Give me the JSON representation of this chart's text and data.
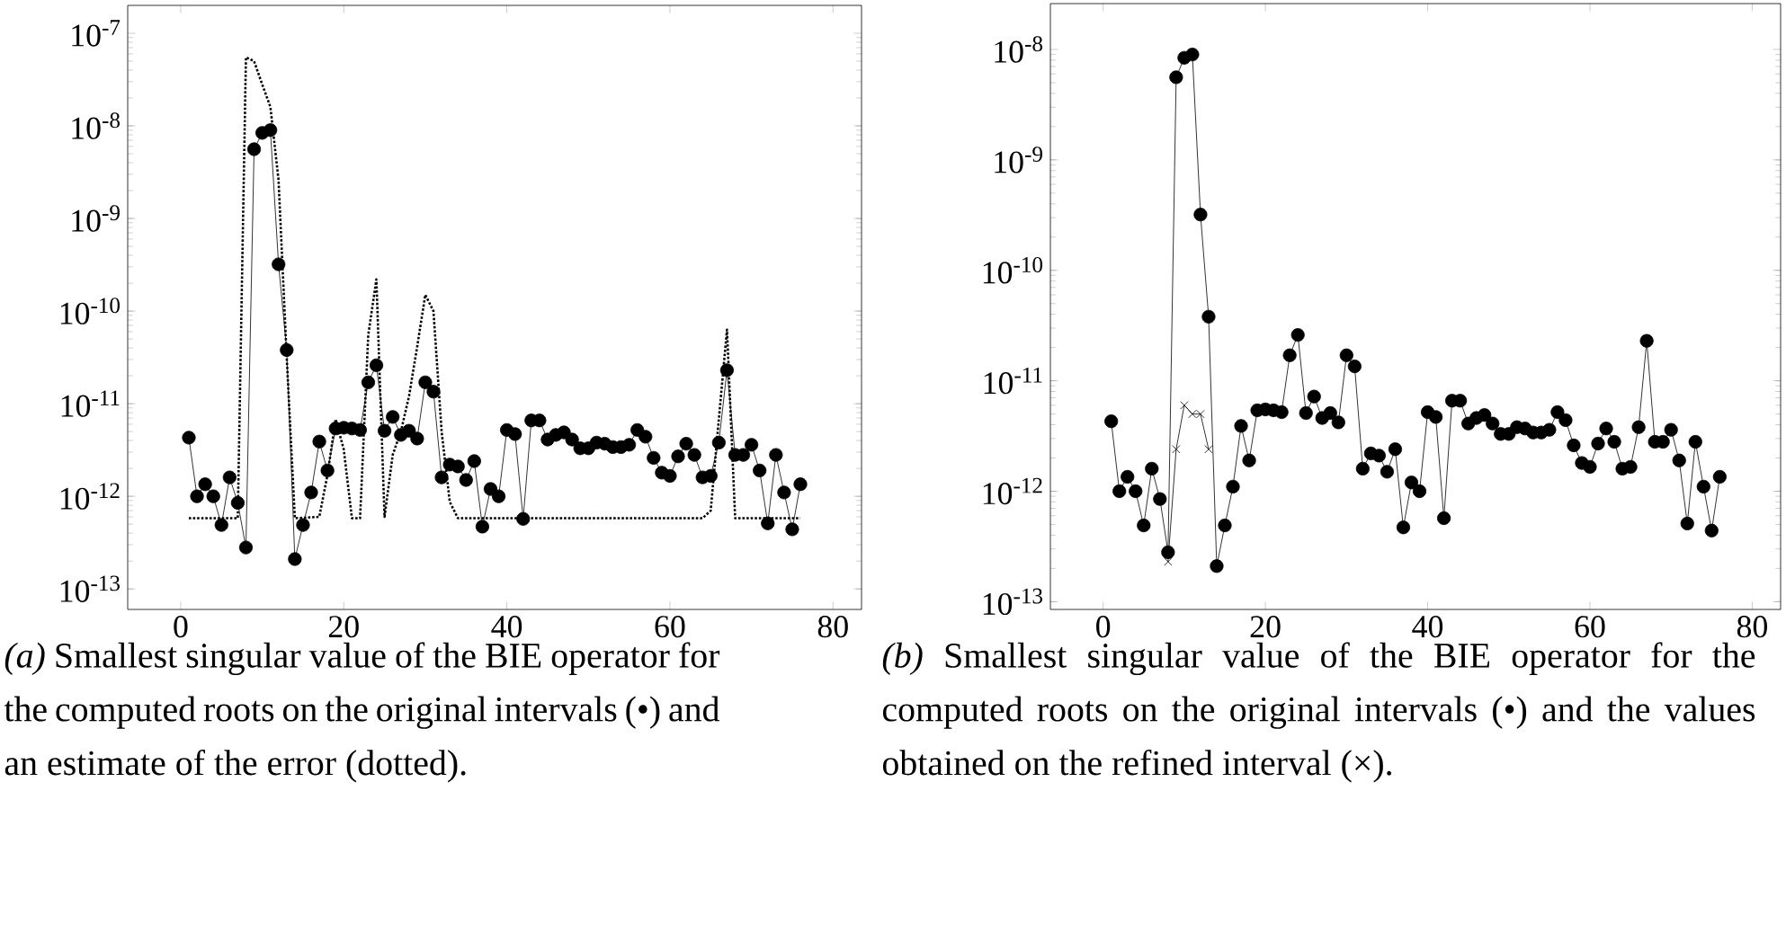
{
  "chart_data": [
    {
      "type": "line",
      "log": "y",
      "xlim": [
        -6.5,
        83.5
      ],
      "ylim": [
        6e-14,
        2e-07
      ],
      "xticks": [
        0,
        20,
        40,
        60,
        80
      ],
      "yticks": [
        {
          "value": 1e-13,
          "label": "10$^{-13}$"
        },
        {
          "value": 1e-12,
          "label": "10$^{-12}$"
        },
        {
          "value": 1e-11,
          "label": "10$^{-11}$"
        },
        {
          "value": 1e-10,
          "label": "10$^{-10}$"
        },
        {
          "value": 1e-09,
          "label": "10$^{-9}$"
        },
        {
          "value": 1e-08,
          "label": "10$^{-8}$"
        },
        {
          "value": 1e-07,
          "label": "10$^{-7}$"
        }
      ],
      "annotations": [
        "*(a)* Smallest singular value of the BIE operator for the computed roots on the original intervals (•) and an estimate of the error (dotted)."
      ],
      "series": [
        {
          "color": "#000000",
          "marker": "circle",
          "line_style": "solid",
          "x": [
            1,
            2,
            3,
            4,
            5,
            6,
            7,
            8,
            9,
            10,
            11,
            12,
            13,
            14,
            15,
            16,
            17,
            18,
            19,
            20,
            21,
            22,
            23,
            24,
            25,
            26,
            27,
            28,
            29,
            30,
            31,
            32,
            33,
            34,
            35,
            36,
            37,
            38,
            39,
            40,
            41,
            42,
            43,
            44,
            45,
            46,
            47,
            48,
            49,
            50,
            51,
            52,
            53,
            54,
            55,
            56,
            57,
            58,
            59,
            60,
            61,
            62,
            63,
            64,
            65,
            66,
            67,
            68,
            69,
            70,
            71,
            72,
            73,
            74,
            75,
            76
          ],
          "values": [
            4.3e-12,
            1e-12,
            1.35e-12,
            1e-12,
            4.9e-13,
            1.6e-12,
            8.5e-13,
            2.8e-13,
            5.6e-09,
            8.4e-09,
            9e-09,
            3.2e-10,
            3.8e-11,
            2.1e-13,
            4.9e-13,
            1.1e-12,
            3.9e-12,
            1.9e-12,
            5.4e-12,
            5.5e-12,
            5.4e-12,
            5.2e-12,
            1.7e-11,
            2.6e-11,
            5.1e-12,
            7.2e-12,
            4.6e-12,
            5.1e-12,
            4.2e-12,
            1.7e-11,
            1.35e-11,
            1.6e-12,
            2.2e-12,
            2.1e-12,
            1.5e-12,
            2.4e-12,
            4.7e-13,
            1.2e-12,
            1e-12,
            5.2e-12,
            4.7e-12,
            5.7e-13,
            6.6e-12,
            6.6e-12,
            4.1e-12,
            4.6e-12,
            4.9e-12,
            4.1e-12,
            3.3e-12,
            3.3e-12,
            3.8e-12,
            3.7e-12,
            3.4e-12,
            3.4e-12,
            3.6e-12,
            5.2e-12,
            4.4e-12,
            2.6e-12,
            1.8e-12,
            1.66e-12,
            2.7e-12,
            3.7e-12,
            2.8e-12,
            1.6e-12,
            1.66e-12,
            3.8e-12,
            2.3e-11,
            2.8e-12,
            2.8e-12,
            3.6e-12,
            1.9e-12,
            5.1e-13,
            2.8e-12,
            1.1e-12,
            4.4e-13,
            1.35e-12
          ]
        },
        {
          "color": "#000000",
          "marker": "none",
          "line_style": "dotted",
          "x": [
            1,
            7,
            8,
            9,
            10,
            11,
            12,
            13,
            14,
            17,
            18,
            19,
            20,
            21,
            22,
            23,
            24,
            25,
            26,
            27,
            28,
            29,
            30,
            31,
            32,
            33,
            34,
            64,
            65,
            66,
            67,
            68,
            76
          ],
          "values": [
            5.8e-13,
            5.8e-13,
            5.5e-08,
            5e-08,
            2.8e-08,
            1.6e-08,
            2.6e-09,
            3.2e-11,
            5.8e-13,
            6e-13,
            1.7e-12,
            6.8e-12,
            3.2e-12,
            5.8e-13,
            5.8e-13,
            5.5e-11,
            2.2e-10,
            6e-13,
            2.8e-12,
            5e-12,
            1.2e-11,
            4.1e-11,
            1.5e-10,
            1e-10,
            5e-12,
            8.7e-13,
            5.8e-13,
            5.8e-13,
            7e-13,
            6.8e-12,
            6.3e-11,
            5.8e-13,
            5.8e-13
          ]
        }
      ]
    },
    {
      "type": "line",
      "log": "y",
      "xlim": [
        -6.5,
        83.5
      ],
      "ylim": [
        8.5e-14,
        2.6e-08
      ],
      "xticks": [
        0,
        20,
        40,
        60,
        80
      ],
      "yticks": [
        {
          "value": 1e-13,
          "label": "10$^{-13}$"
        },
        {
          "value": 1e-12,
          "label": "10$^{-12}$"
        },
        {
          "value": 1e-11,
          "label": "10$^{-11}$"
        },
        {
          "value": 1e-10,
          "label": "10$^{-10}$"
        },
        {
          "value": 1e-09,
          "label": "10$^{-9}$"
        },
        {
          "value": 1e-08,
          "label": "10$^{-8}$"
        }
      ],
      "annotations": [
        "*(b)* Smallest singular value of the BIE operator for the computed roots on the original intervals (•) and the values obtained on the refined interval (×)."
      ],
      "series": [
        {
          "color": "#000000",
          "marker": "circle",
          "line_style": "solid",
          "x": [
            1,
            2,
            3,
            4,
            5,
            6,
            7,
            8,
            9,
            10,
            11,
            12,
            13,
            14,
            15,
            16,
            17,
            18,
            19,
            20,
            21,
            22,
            23,
            24,
            25,
            26,
            27,
            28,
            29,
            30,
            31,
            32,
            33,
            34,
            35,
            36,
            37,
            38,
            39,
            40,
            41,
            42,
            43,
            44,
            45,
            46,
            47,
            48,
            49,
            50,
            51,
            52,
            53,
            54,
            55,
            56,
            57,
            58,
            59,
            60,
            61,
            62,
            63,
            64,
            65,
            66,
            67,
            68,
            69,
            70,
            71,
            72,
            73,
            74,
            75,
            76
          ],
          "values": [
            4.3e-12,
            1e-12,
            1.35e-12,
            1e-12,
            4.9e-13,
            1.6e-12,
            8.5e-13,
            2.8e-13,
            5.6e-09,
            8.4e-09,
            9e-09,
            3.2e-10,
            3.8e-11,
            2.1e-13,
            4.9e-13,
            1.1e-12,
            3.9e-12,
            1.9e-12,
            5.4e-12,
            5.5e-12,
            5.4e-12,
            5.2e-12,
            1.7e-11,
            2.6e-11,
            5.1e-12,
            7.2e-12,
            4.6e-12,
            5.1e-12,
            4.2e-12,
            1.7e-11,
            1.35e-11,
            1.6e-12,
            2.2e-12,
            2.1e-12,
            1.5e-12,
            2.4e-12,
            4.7e-13,
            1.2e-12,
            1e-12,
            5.2e-12,
            4.7e-12,
            5.7e-13,
            6.6e-12,
            6.6e-12,
            4.1e-12,
            4.6e-12,
            4.9e-12,
            4.1e-12,
            3.3e-12,
            3.3e-12,
            3.8e-12,
            3.7e-12,
            3.4e-12,
            3.4e-12,
            3.6e-12,
            5.2e-12,
            4.4e-12,
            2.6e-12,
            1.8e-12,
            1.66e-12,
            2.7e-12,
            3.7e-12,
            2.8e-12,
            1.6e-12,
            1.66e-12,
            3.8e-12,
            2.3e-11,
            2.8e-12,
            2.8e-12,
            3.6e-12,
            1.9e-12,
            5.1e-13,
            2.8e-12,
            1.1e-12,
            4.4e-13,
            1.35e-12
          ]
        },
        {
          "color": "#000000",
          "marker": "cross",
          "line_style": "solid",
          "x": [
            8,
            9,
            10,
            11,
            12,
            13
          ],
          "values": [
            2.3e-13,
            2.4e-12,
            6e-12,
            5e-12,
            5e-12,
            2.4e-12
          ]
        }
      ]
    }
  ]
}
